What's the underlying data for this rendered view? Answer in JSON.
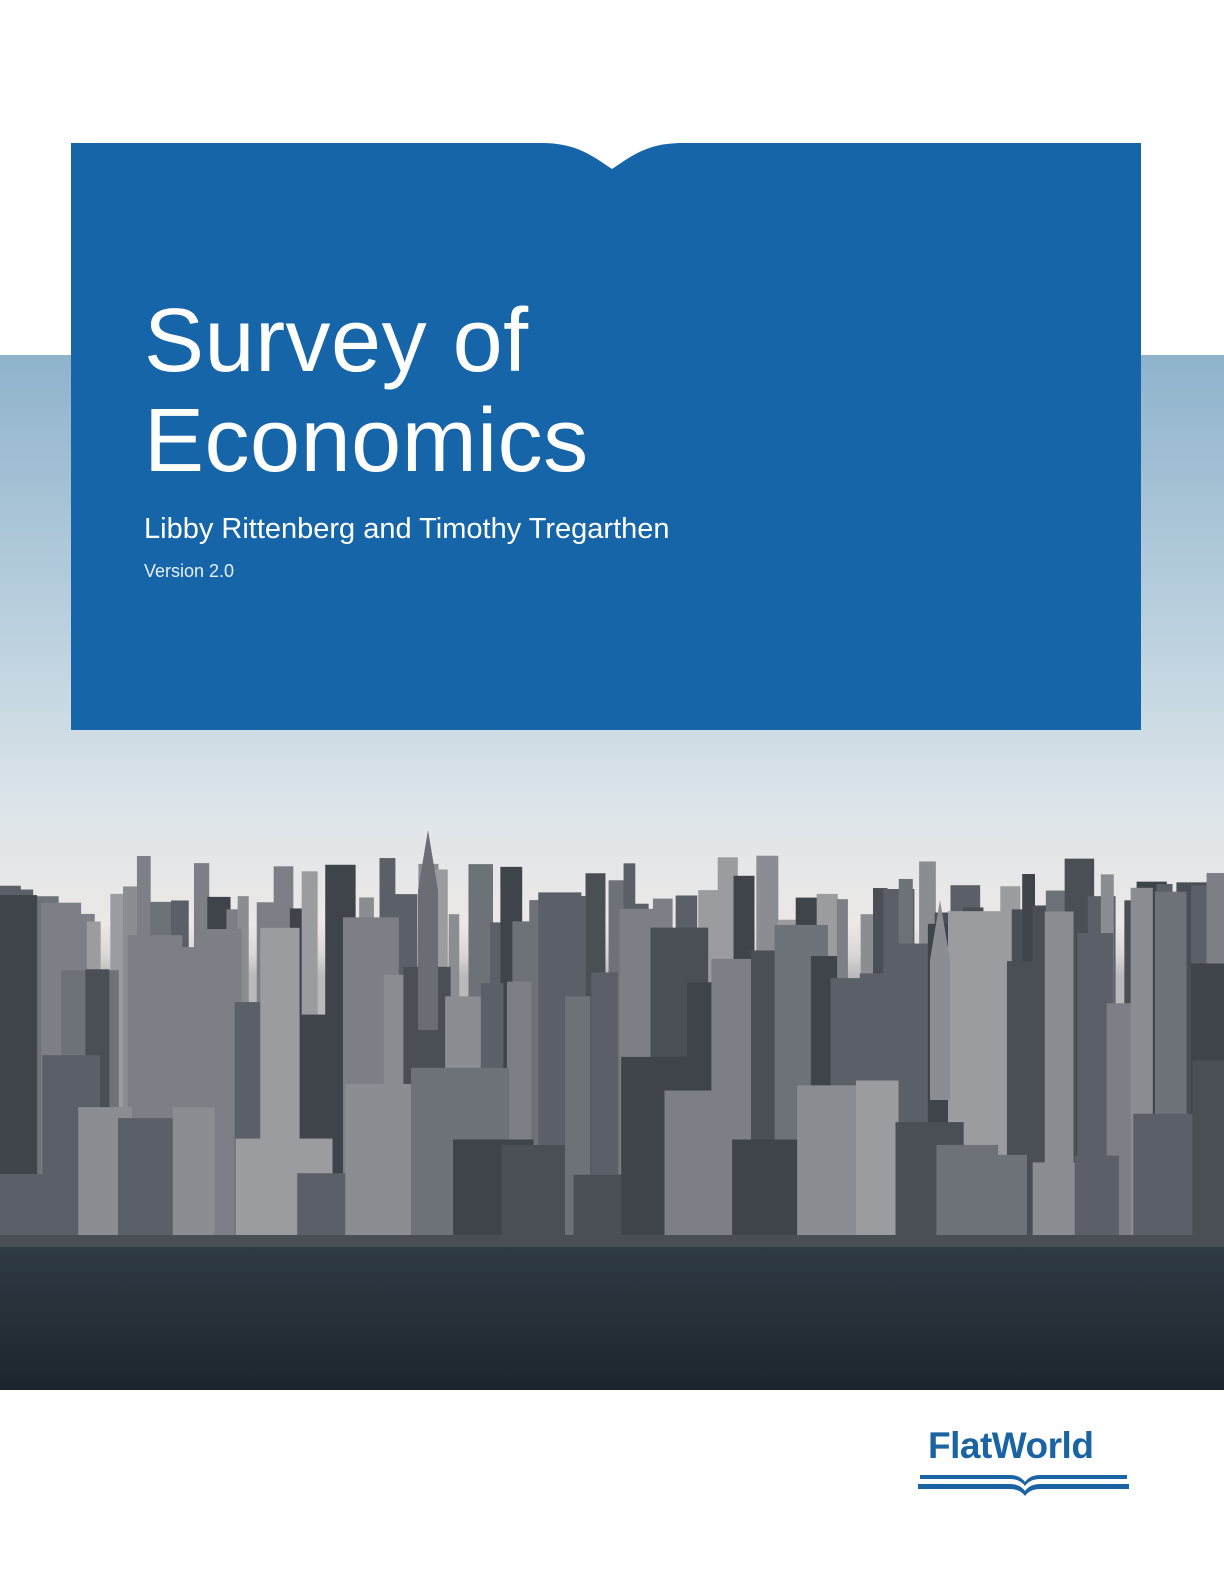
{
  "cover": {
    "title_line1": "Survey of",
    "title_line2": "Economics",
    "authors": "Libby Rittenberg and Timothy Tregarthen",
    "version": "Version 2.0"
  },
  "publisher": {
    "logo_text": "FlatWorld"
  },
  "colors": {
    "brand_blue": "#1565a8",
    "logo_blue": "#1b64a4"
  },
  "image": {
    "icon": "city-skyline-photo"
  }
}
